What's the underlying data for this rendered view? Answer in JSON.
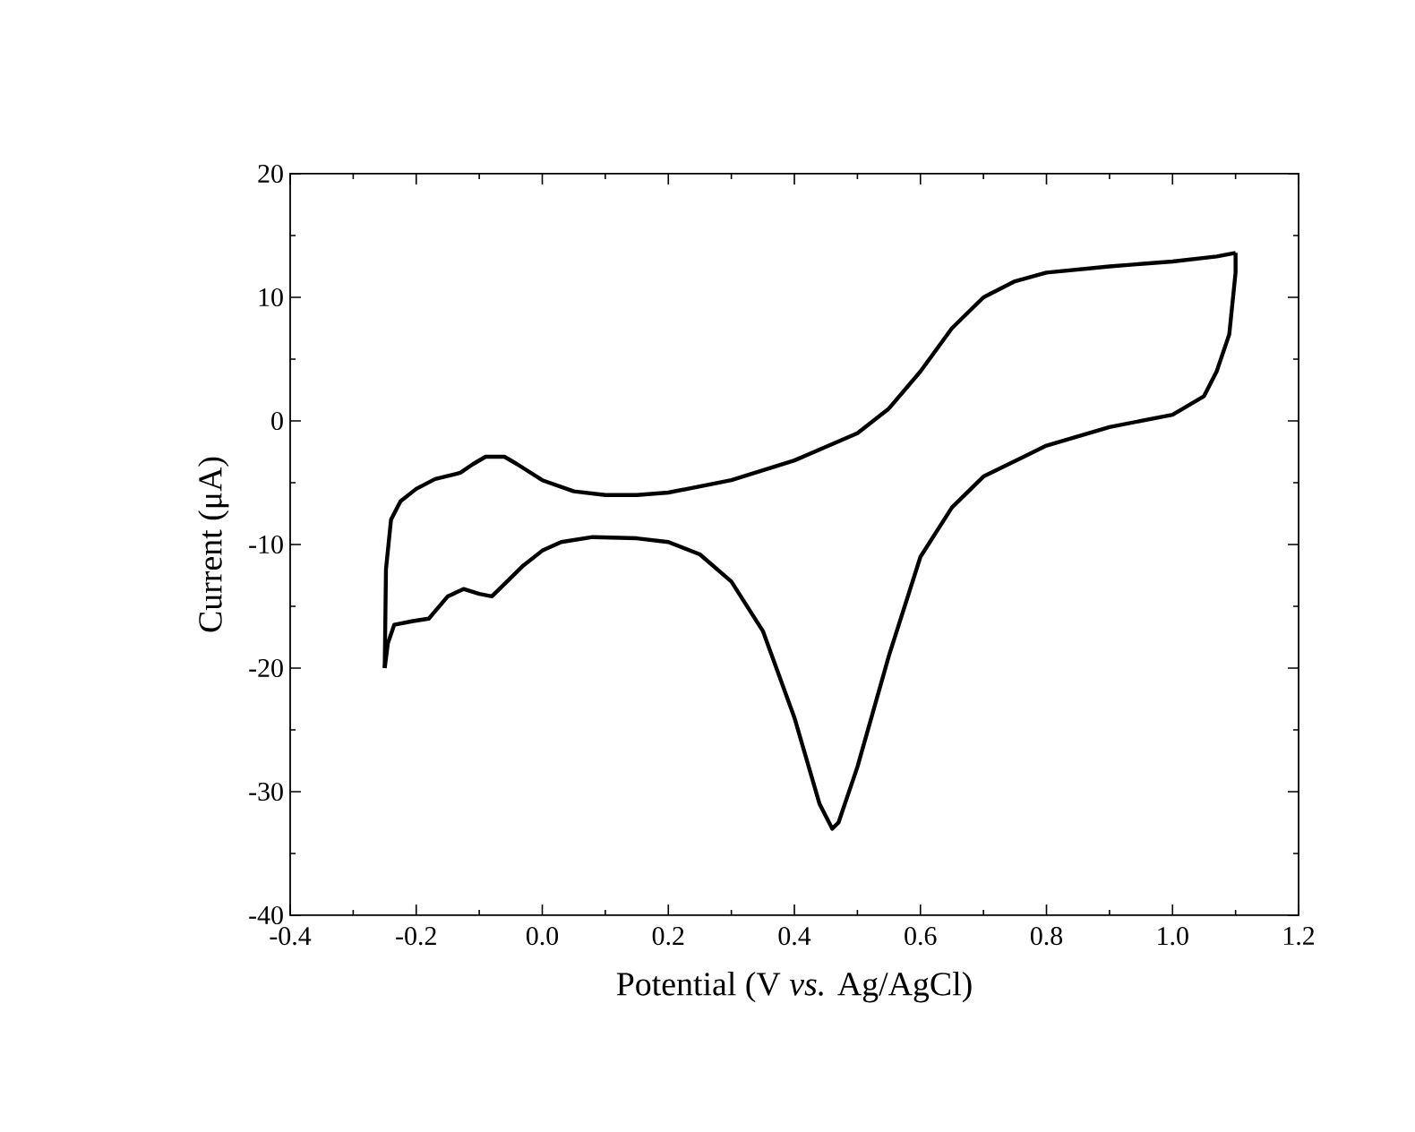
{
  "chart_data": {
    "type": "line",
    "xlabel": "Potential (V *vs.* Ag/AgCl)",
    "ylabel": "Current (μA)",
    "xlim": [
      -0.4,
      1.2
    ],
    "ylim": [
      -40,
      20
    ],
    "xticks": [
      {
        "value": -0.4,
        "label": "-0.4"
      },
      {
        "value": -0.2,
        "label": "-0.2"
      },
      {
        "value": 0,
        "label": "0.0"
      },
      {
        "value": 0.2,
        "label": "0.2"
      },
      {
        "value": 0.4,
        "label": "0.4"
      },
      {
        "value": 0.6,
        "label": "0.6"
      },
      {
        "value": 0.8,
        "label": "0.8"
      },
      {
        "value": 1.0,
        "label": "1.0"
      },
      {
        "value": 1.2,
        "label": "1.2"
      }
    ],
    "yticks": [
      -40,
      -30,
      -20,
      -10,
      0,
      10,
      20
    ],
    "series": [
      {
        "color": "#000000",
        "x": [
          -0.25,
          -0.248,
          -0.24,
          -0.225,
          -0.2,
          -0.17,
          -0.13,
          -0.11,
          -0.09,
          -0.06,
          -0.04,
          0,
          0.05,
          0.1,
          0.15,
          0.2,
          0.3,
          0.4,
          0.5,
          0.55,
          0.6,
          0.65,
          0.7,
          0.75,
          0.8,
          0.9,
          1.0,
          1.07,
          1.1
        ],
        "values": [
          -20,
          -12,
          -8,
          -6.5,
          -5.5,
          -4.7,
          -4.2,
          -3.5,
          -2.9,
          -2.9,
          -3.5,
          -4.8,
          -5.7,
          -6,
          -6,
          -5.8,
          -4.8,
          -3.2,
          -1,
          1,
          4,
          7.5,
          10,
          11.3,
          12,
          12.5,
          12.9,
          13.3,
          13.6
        ]
      },
      {
        "color": "#000000",
        "x": [
          1.1,
          1.1,
          1.09,
          1.07,
          1.05,
          1.0,
          0.9,
          0.8,
          0.7,
          0.65,
          0.6,
          0.55,
          0.5,
          0.47,
          0.46,
          0.44,
          0.4,
          0.35,
          0.3,
          0.25,
          0.2,
          0.15,
          0.08,
          0.03,
          0,
          -0.03,
          -0.06,
          -0.08,
          -0.1,
          -0.125,
          -0.15,
          -0.18,
          -0.205,
          -0.235,
          -0.245,
          -0.25
        ],
        "values": [
          13.6,
          12,
          7,
          4,
          2,
          0.5,
          -0.5,
          -2,
          -4.5,
          -7,
          -11,
          -19,
          -28,
          -32.5,
          -33,
          -31,
          -24,
          -17,
          -13,
          -10.8,
          -9.8,
          -9.5,
          -9.4,
          -9.8,
          -10.5,
          -11.7,
          -13.2,
          -14.2,
          -14,
          -13.6,
          -14.2,
          -16,
          -16.2,
          -16.5,
          -18,
          -20
        ]
      }
    ]
  }
}
